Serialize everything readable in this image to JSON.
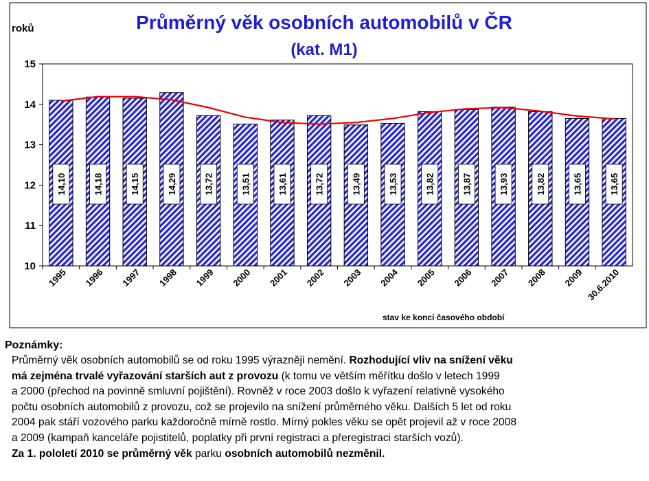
{
  "chart_data": {
    "type": "bar",
    "title": "Průměrný věk osobních automobilů v ČR",
    "subtitle": "(kat. M1)",
    "ylabel": "roků",
    "xlabel": "stav ke konci časového období",
    "ylim": [
      10,
      15
    ],
    "yticks": [
      "10",
      "11",
      "12",
      "13",
      "14",
      "15"
    ],
    "categories": [
      "1995",
      "1996",
      "1997",
      "1998",
      "1999",
      "2000",
      "2001",
      "2002",
      "2003",
      "2004",
      "2005",
      "2006",
      "2007",
      "2008",
      "2009",
      "30.6.2010"
    ],
    "values": [
      14.1,
      14.18,
      14.15,
      14.29,
      13.72,
      13.51,
      13.61,
      13.72,
      13.49,
      13.53,
      13.82,
      13.87,
      13.93,
      13.82,
      13.65,
      13.65
    ],
    "value_labels": [
      "14,10",
      "14,18",
      "14,15",
      "14,29",
      "13,72",
      "13,51",
      "13,61",
      "13,72",
      "13,49",
      "13,53",
      "13,82",
      "13,87",
      "13,93",
      "13,82",
      "13,65",
      "13,65"
    ],
    "trendline": {
      "type": "line",
      "values": [
        14.08,
        14.19,
        14.19,
        14.11,
        13.92,
        13.68,
        13.55,
        13.51,
        13.55,
        13.65,
        13.8,
        13.89,
        13.92,
        13.83,
        13.71,
        13.64
      ]
    },
    "colors": {
      "title": "#1f1fd0",
      "bar": "#2b2bcc",
      "trend": "#ee0000"
    },
    "grid": false,
    "legend": "none"
  },
  "notes": {
    "heading": "Poznámky:",
    "lines": [
      [
        {
          "t": "Průměrný věk osobních automobilů se od roku 1995 výrazněji nemění. "
        },
        {
          "t": "Rozhodující vliv na snížení věku",
          "b": true
        }
      ],
      [
        {
          "t": "má zejména trvalé vyřazování starších aut z provozu",
          "b": true
        },
        {
          "t": " (k tomu ve větším měřítku došlo v letech 1999"
        }
      ],
      [
        {
          "t": "a 2000 (přechod na povinně smluvní pojištění). Rovněž v roce 2003 došlo k vyřazení relativně vysokého"
        }
      ],
      [
        {
          "t": "počtu osobních automobilů z provozu, což se projevilo na snížení průměrného věku. Dalších 5 let od roku"
        }
      ],
      [
        {
          "t": "2004 pak stáří vozového parku každoročně mírně rostlo. Mírný pokles věku se opět projevil až v roce 2008"
        }
      ],
      [
        {
          "t": "a 2009 (kampaň kanceláře pojistitelů, poplatky při první registraci a přeregistraci starších vozů)."
        }
      ],
      [
        {
          "t": "Za 1. pololetí 2010 se průměrný věk",
          "b": true
        },
        {
          "t": " parku "
        },
        {
          "t": "osobních automobilů nezměnil.",
          "b": true
        }
      ]
    ]
  }
}
